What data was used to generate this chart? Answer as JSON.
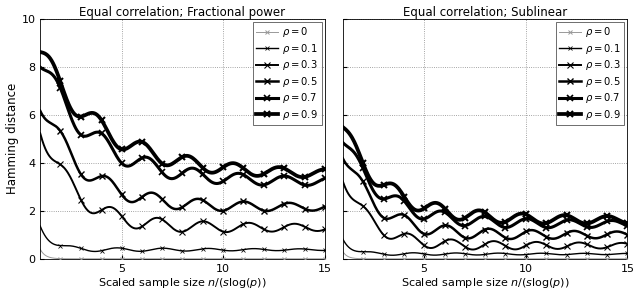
{
  "title_left": "Equal correlation; Fractional power",
  "title_right": "Equal correlation; Sublinear",
  "xlabel_math": "Scaled sample size $n/(s\\log(p))$",
  "ylabel": "Hamming distance",
  "xlim": [
    1,
    15
  ],
  "ylim": [
    0,
    10
  ],
  "yticks": [
    0,
    2,
    4,
    6,
    8,
    10
  ],
  "xticks": [
    5,
    10,
    15
  ],
  "rho_labels": [
    "$\\rho = 0$",
    "$\\rho = 0.1$",
    "$\\rho = 0.3$",
    "$\\rho = 0.5$",
    "$\\rho = 0.7$",
    "$\\rho = 0.9$"
  ],
  "line_widths": [
    0.7,
    1.0,
    1.4,
    1.8,
    2.2,
    2.7
  ],
  "gray_color": "#999999",
  "figsize": [
    6.4,
    2.96
  ],
  "dpi": 100,
  "fp_asymptotes": [
    0.0,
    0.38,
    1.3,
    2.15,
    3.2,
    3.5
  ],
  "fp_starts": [
    0.4,
    1.4,
    5.6,
    6.6,
    8.3,
    8.6
  ],
  "fp_decays": [
    4.0,
    1.8,
    0.6,
    0.48,
    0.38,
    0.32
  ],
  "sub_asymptotes": [
    0.0,
    0.2,
    0.55,
    1.0,
    1.45,
    1.62
  ],
  "sub_starts": [
    0.3,
    0.85,
    3.5,
    4.5,
    5.0,
    5.4
  ],
  "sub_decays": [
    4.5,
    2.2,
    0.75,
    0.62,
    0.52,
    0.47
  ]
}
